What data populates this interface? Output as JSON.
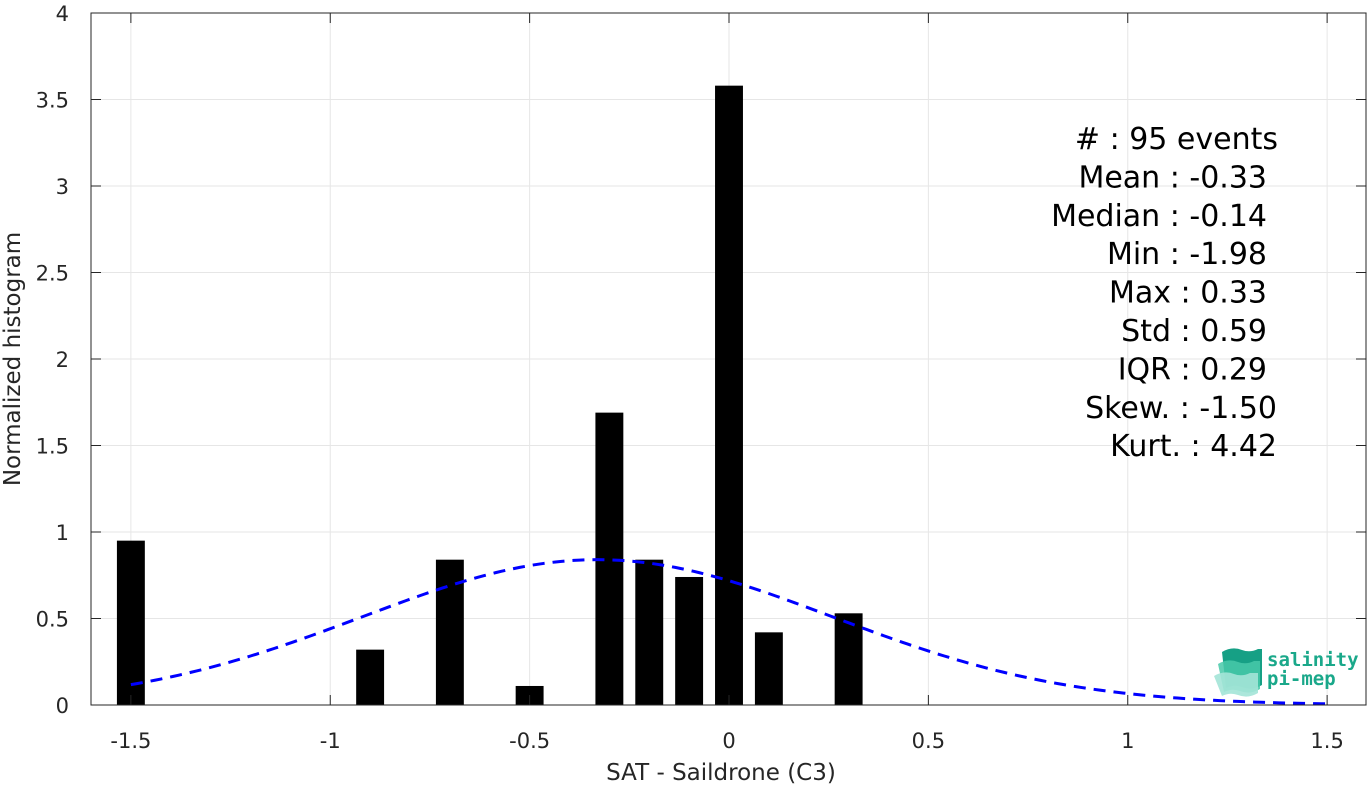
{
  "chart_data": {
    "type": "bar",
    "xlabel": "SAT - Saildrone (C3)",
    "ylabel": "Normalized histogram",
    "xlim": [
      -1.6,
      1.6
    ],
    "ylim": [
      0,
      4
    ],
    "xticks": [
      -1.5,
      -1,
      -0.5,
      0,
      0.5,
      1,
      1.5
    ],
    "xtick_labels": [
      "-1.5",
      "-1",
      "-0.5",
      "0",
      "0.5",
      "1",
      "1.5"
    ],
    "yticks": [
      0,
      0.5,
      1,
      1.5,
      2,
      2.5,
      3,
      3.5,
      4
    ],
    "ytick_labels": [
      "0",
      "0.5",
      "1",
      "1.5",
      "2",
      "2.5",
      "3",
      "3.5",
      "4"
    ],
    "grid": true,
    "bar_width": 0.07,
    "bars": [
      {
        "x": -1.5,
        "value": 0.95
      },
      {
        "x": -0.9,
        "value": 0.32
      },
      {
        "x": -0.7,
        "value": 0.84
      },
      {
        "x": -0.5,
        "value": 0.11
      },
      {
        "x": -0.3,
        "value": 1.69
      },
      {
        "x": -0.2,
        "value": 0.84
      },
      {
        "x": -0.1,
        "value": 0.74
      },
      {
        "x": 0.0,
        "value": 3.58
      },
      {
        "x": 0.1,
        "value": 0.42
      },
      {
        "x": 0.3,
        "value": 0.53
      }
    ],
    "bar_color": "#000000",
    "fit_curve": {
      "type": "normal",
      "mean": -0.33,
      "std": 0.59,
      "peak": 0.84,
      "x_range": [
        -1.5,
        1.5
      ],
      "color": "#0000ff",
      "style": "dashed"
    },
    "stats_box": [
      {
        "name": "#",
        "value": ": 95 events"
      },
      {
        "name": "Mean",
        "value": ": -0.33"
      },
      {
        "name": "Median",
        "value": ": -0.14"
      },
      {
        "name": "Min",
        "value": ": -1.98"
      },
      {
        "name": "Max",
        "value": ": 0.33"
      },
      {
        "name": "Std",
        "value": ": 0.59"
      },
      {
        "name": "IQR",
        "value": ": 0.29"
      },
      {
        "name": "Skew.",
        "value": ": -1.50"
      },
      {
        "name": "Kurt.",
        "value": ": 4.42"
      }
    ]
  },
  "logo": {
    "line1": "salinity",
    "line2": "pi-mep",
    "color": "#1aa88a"
  }
}
